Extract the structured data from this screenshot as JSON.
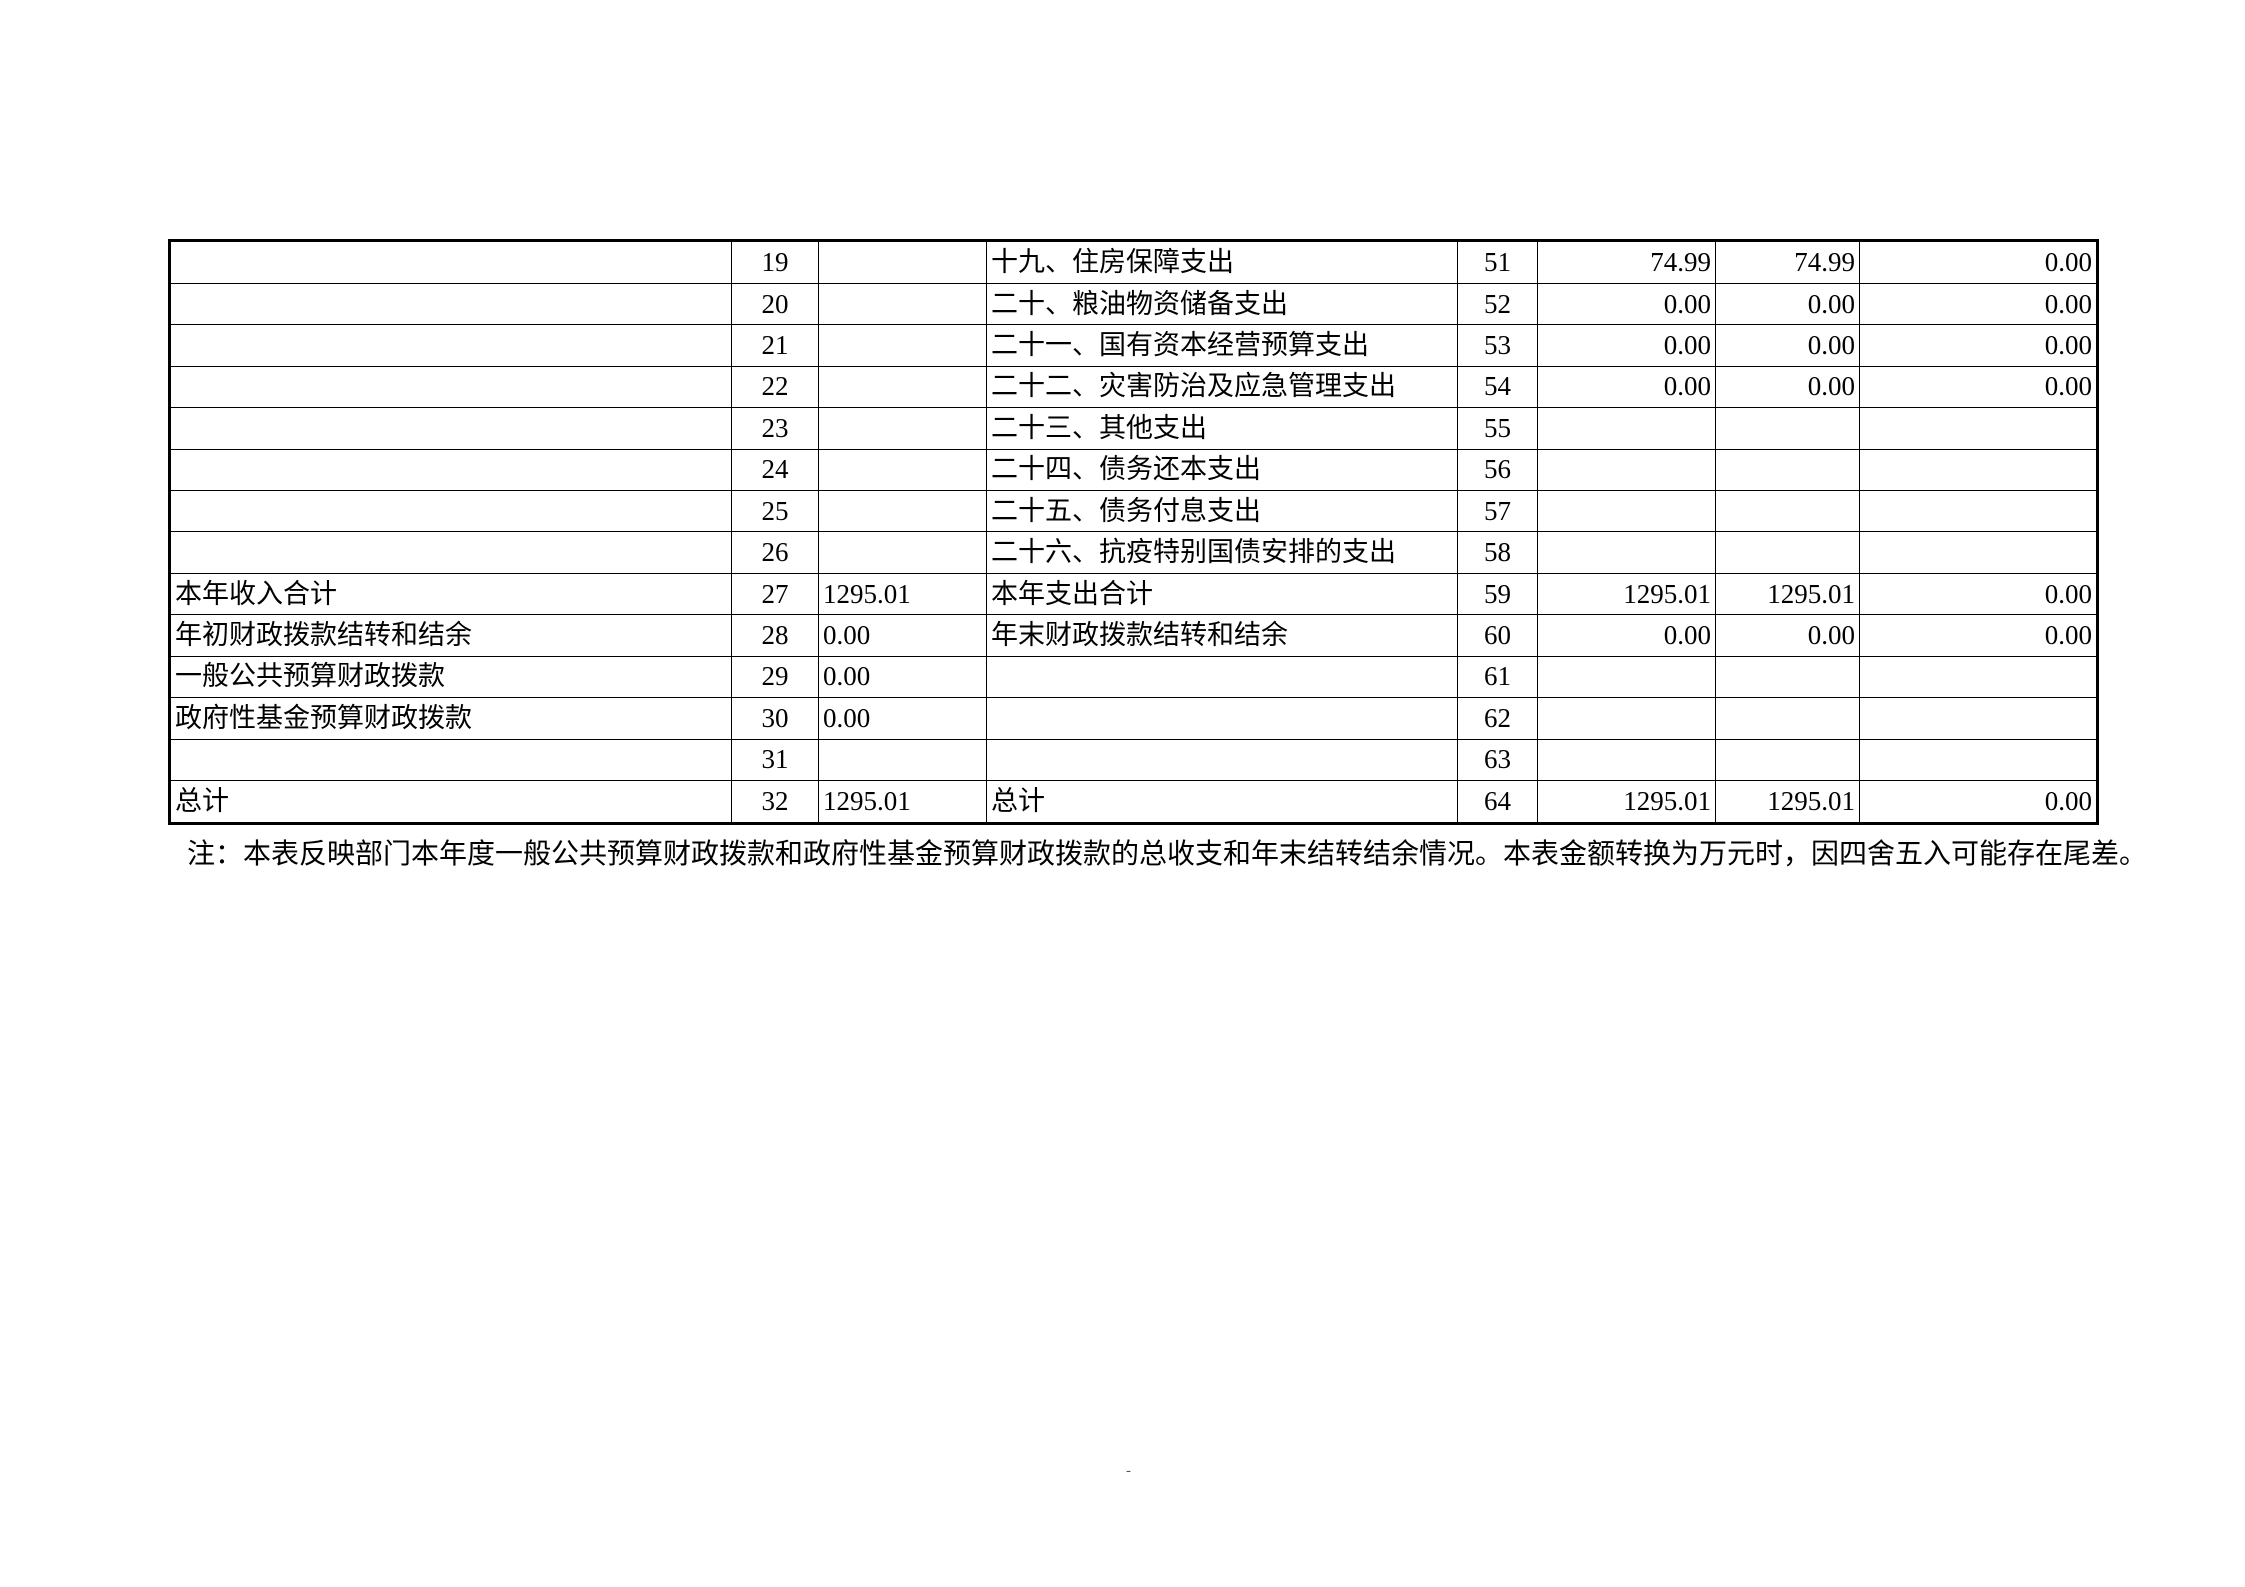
{
  "note": "注：本表反映部门本年度一般公共预算财政拨款和政府性基金预算财政拨款的总收支和年末结转结余情况。本表金额转换为万元时，因四舍五入可能存在尾差。",
  "page_mark": "-",
  "table": {
    "rows": [
      {
        "left_label": "",
        "left_indent": 0,
        "left_num": "19",
        "left_value": "",
        "right_label": "十九、住房保障支出",
        "right_num": "51",
        "val1": "74.99",
        "val2": "74.99",
        "val3": "0.00"
      },
      {
        "left_label": "",
        "left_indent": 0,
        "left_num": "20",
        "left_value": "",
        "right_label": "二十、粮油物资储备支出",
        "right_num": "52",
        "val1": "0.00",
        "val2": "0.00",
        "val3": "0.00"
      },
      {
        "left_label": "",
        "left_indent": 0,
        "left_num": "21",
        "left_value": "",
        "right_label": "二十一、国有资本经营预算支出",
        "right_num": "53",
        "val1": "0.00",
        "val2": "0.00",
        "val3": "0.00"
      },
      {
        "left_label": "",
        "left_indent": 0,
        "left_num": "22",
        "left_value": "",
        "right_label": "二十二、灾害防治及应急管理支出",
        "right_num": "54",
        "val1": "0.00",
        "val2": "0.00",
        "val3": "0.00"
      },
      {
        "left_label": "",
        "left_indent": 0,
        "left_num": "23",
        "left_value": "",
        "right_label": "二十三、其他支出",
        "right_num": "55",
        "val1": "",
        "val2": "",
        "val3": ""
      },
      {
        "left_label": "",
        "left_indent": 0,
        "left_num": "24",
        "left_value": "",
        "right_label": "二十四、债务还本支出",
        "right_num": "56",
        "val1": "",
        "val2": "",
        "val3": ""
      },
      {
        "left_label": "",
        "left_indent": 0,
        "left_num": "25",
        "left_value": "",
        "right_label": "二十五、债务付息支出",
        "right_num": "57",
        "val1": "",
        "val2": "",
        "val3": ""
      },
      {
        "left_label": "",
        "left_indent": 0,
        "left_num": "26",
        "left_value": "",
        "right_label": "二十六、抗疫特别国债安排的支出",
        "right_num": "58",
        "val1": "",
        "val2": "",
        "val3": ""
      },
      {
        "left_label": "本年收入合计",
        "left_indent": 0,
        "left_num": "27",
        "left_value": "1295.01",
        "right_label": "本年支出合计",
        "right_num": "59",
        "val1": "1295.01",
        "val2": "1295.01",
        "val3": "0.00"
      },
      {
        "left_label": "年初财政拨款结转和结余",
        "left_indent": 0,
        "left_num": "28",
        "left_value": "0.00",
        "right_label": "年末财政拨款结转和结余",
        "right_num": "60",
        "val1": "0.00",
        "val2": "0.00",
        "val3": "0.00"
      },
      {
        "left_label": "一般公共预算财政拨款",
        "left_indent": 1,
        "left_num": "29",
        "left_value": "0.00",
        "right_label": "",
        "right_num": "61",
        "val1": "",
        "val2": "",
        "val3": ""
      },
      {
        "left_label": "政府性基金预算财政拨款",
        "left_indent": 2,
        "left_num": "30",
        "left_value": "0.00",
        "right_label": "",
        "right_num": "62",
        "val1": "",
        "val2": "",
        "val3": ""
      },
      {
        "left_label": "",
        "left_indent": 0,
        "left_num": "31",
        "left_value": "",
        "right_label": "",
        "right_num": "63",
        "val1": "",
        "val2": "",
        "val3": ""
      },
      {
        "left_label": "总计",
        "left_indent": 0,
        "left_num": "32",
        "left_value": "1295.01",
        "right_label": "总计",
        "right_num": "64",
        "val1": "1295.01",
        "val2": "1295.01",
        "val3": "0.00"
      }
    ]
  }
}
